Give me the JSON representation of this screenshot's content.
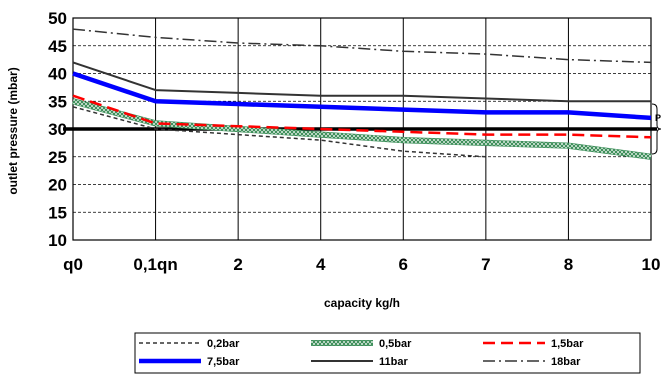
{
  "chart_data": {
    "type": "line",
    "title": "",
    "xlabel": "capacity kg/h",
    "ylabel": "outlet pressure (mbar)",
    "categories": [
      "q0",
      "0,1qn",
      "2",
      "4",
      "6",
      "7",
      "8",
      "10"
    ],
    "ylim": [
      10,
      50
    ],
    "yticks": [
      "10",
      "15",
      "20",
      "25",
      "30",
      "35",
      "40",
      "45",
      "50"
    ],
    "grid": true,
    "legend": "bottom",
    "reference_line": {
      "value": 30,
      "color": "#000000"
    },
    "bracket_label": "P",
    "series": [
      {
        "name": "0,2bar",
        "color": "#333333",
        "style": "short-dash",
        "values": [
          34,
          30,
          29,
          28,
          26,
          25,
          null,
          null
        ]
      },
      {
        "name": "0,5bar",
        "color": "#4a9a6a",
        "style": "hatched",
        "values": [
          35,
          31,
          30,
          29,
          28,
          27.5,
          27,
          25
        ]
      },
      {
        "name": "1,5bar",
        "color": "#ff0000",
        "style": "long-dash",
        "values": [
          36,
          31,
          30.5,
          30,
          29.5,
          29,
          29,
          28.5
        ]
      },
      {
        "name": "7,5bar",
        "color": "#0000ff",
        "style": "thick",
        "values": [
          40,
          35,
          34.5,
          34,
          33.5,
          33,
          33,
          32
        ]
      },
      {
        "name": "11bar",
        "color": "#333333",
        "style": "solid",
        "values": [
          42,
          37,
          36.5,
          36,
          36,
          35.5,
          35,
          35
        ]
      },
      {
        "name": "18bar",
        "color": "#333333",
        "style": "dash-dot",
        "values": [
          48,
          46.5,
          45.5,
          45,
          44,
          43.5,
          42.5,
          42
        ]
      }
    ]
  }
}
